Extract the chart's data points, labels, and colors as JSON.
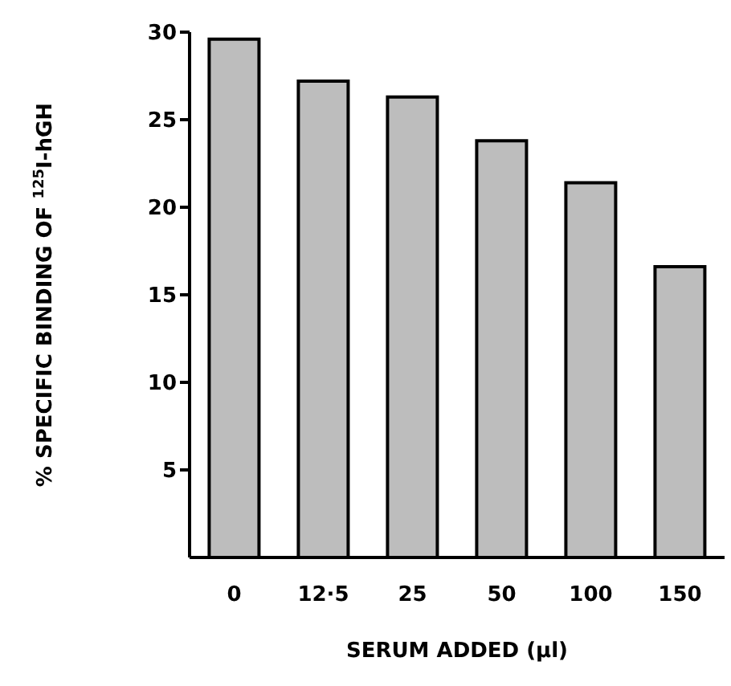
{
  "chart_data": {
    "type": "bar",
    "xlabel": "SERUM ADDED (µl)",
    "ylabel": "% SPECIFIC BINDING OF $^{125}$I-hGH",
    "categories": [
      "0",
      "12·5",
      "25",
      "50",
      "100",
      "150"
    ],
    "values": [
      29.6,
      27.2,
      26.3,
      23.8,
      21.4,
      16.6
    ],
    "color": "#bdbdbd",
    "ylim": [
      0,
      30
    ],
    "yticks": [
      5,
      10,
      15,
      20,
      25,
      30
    ],
    "grid": false,
    "legend": false
  }
}
